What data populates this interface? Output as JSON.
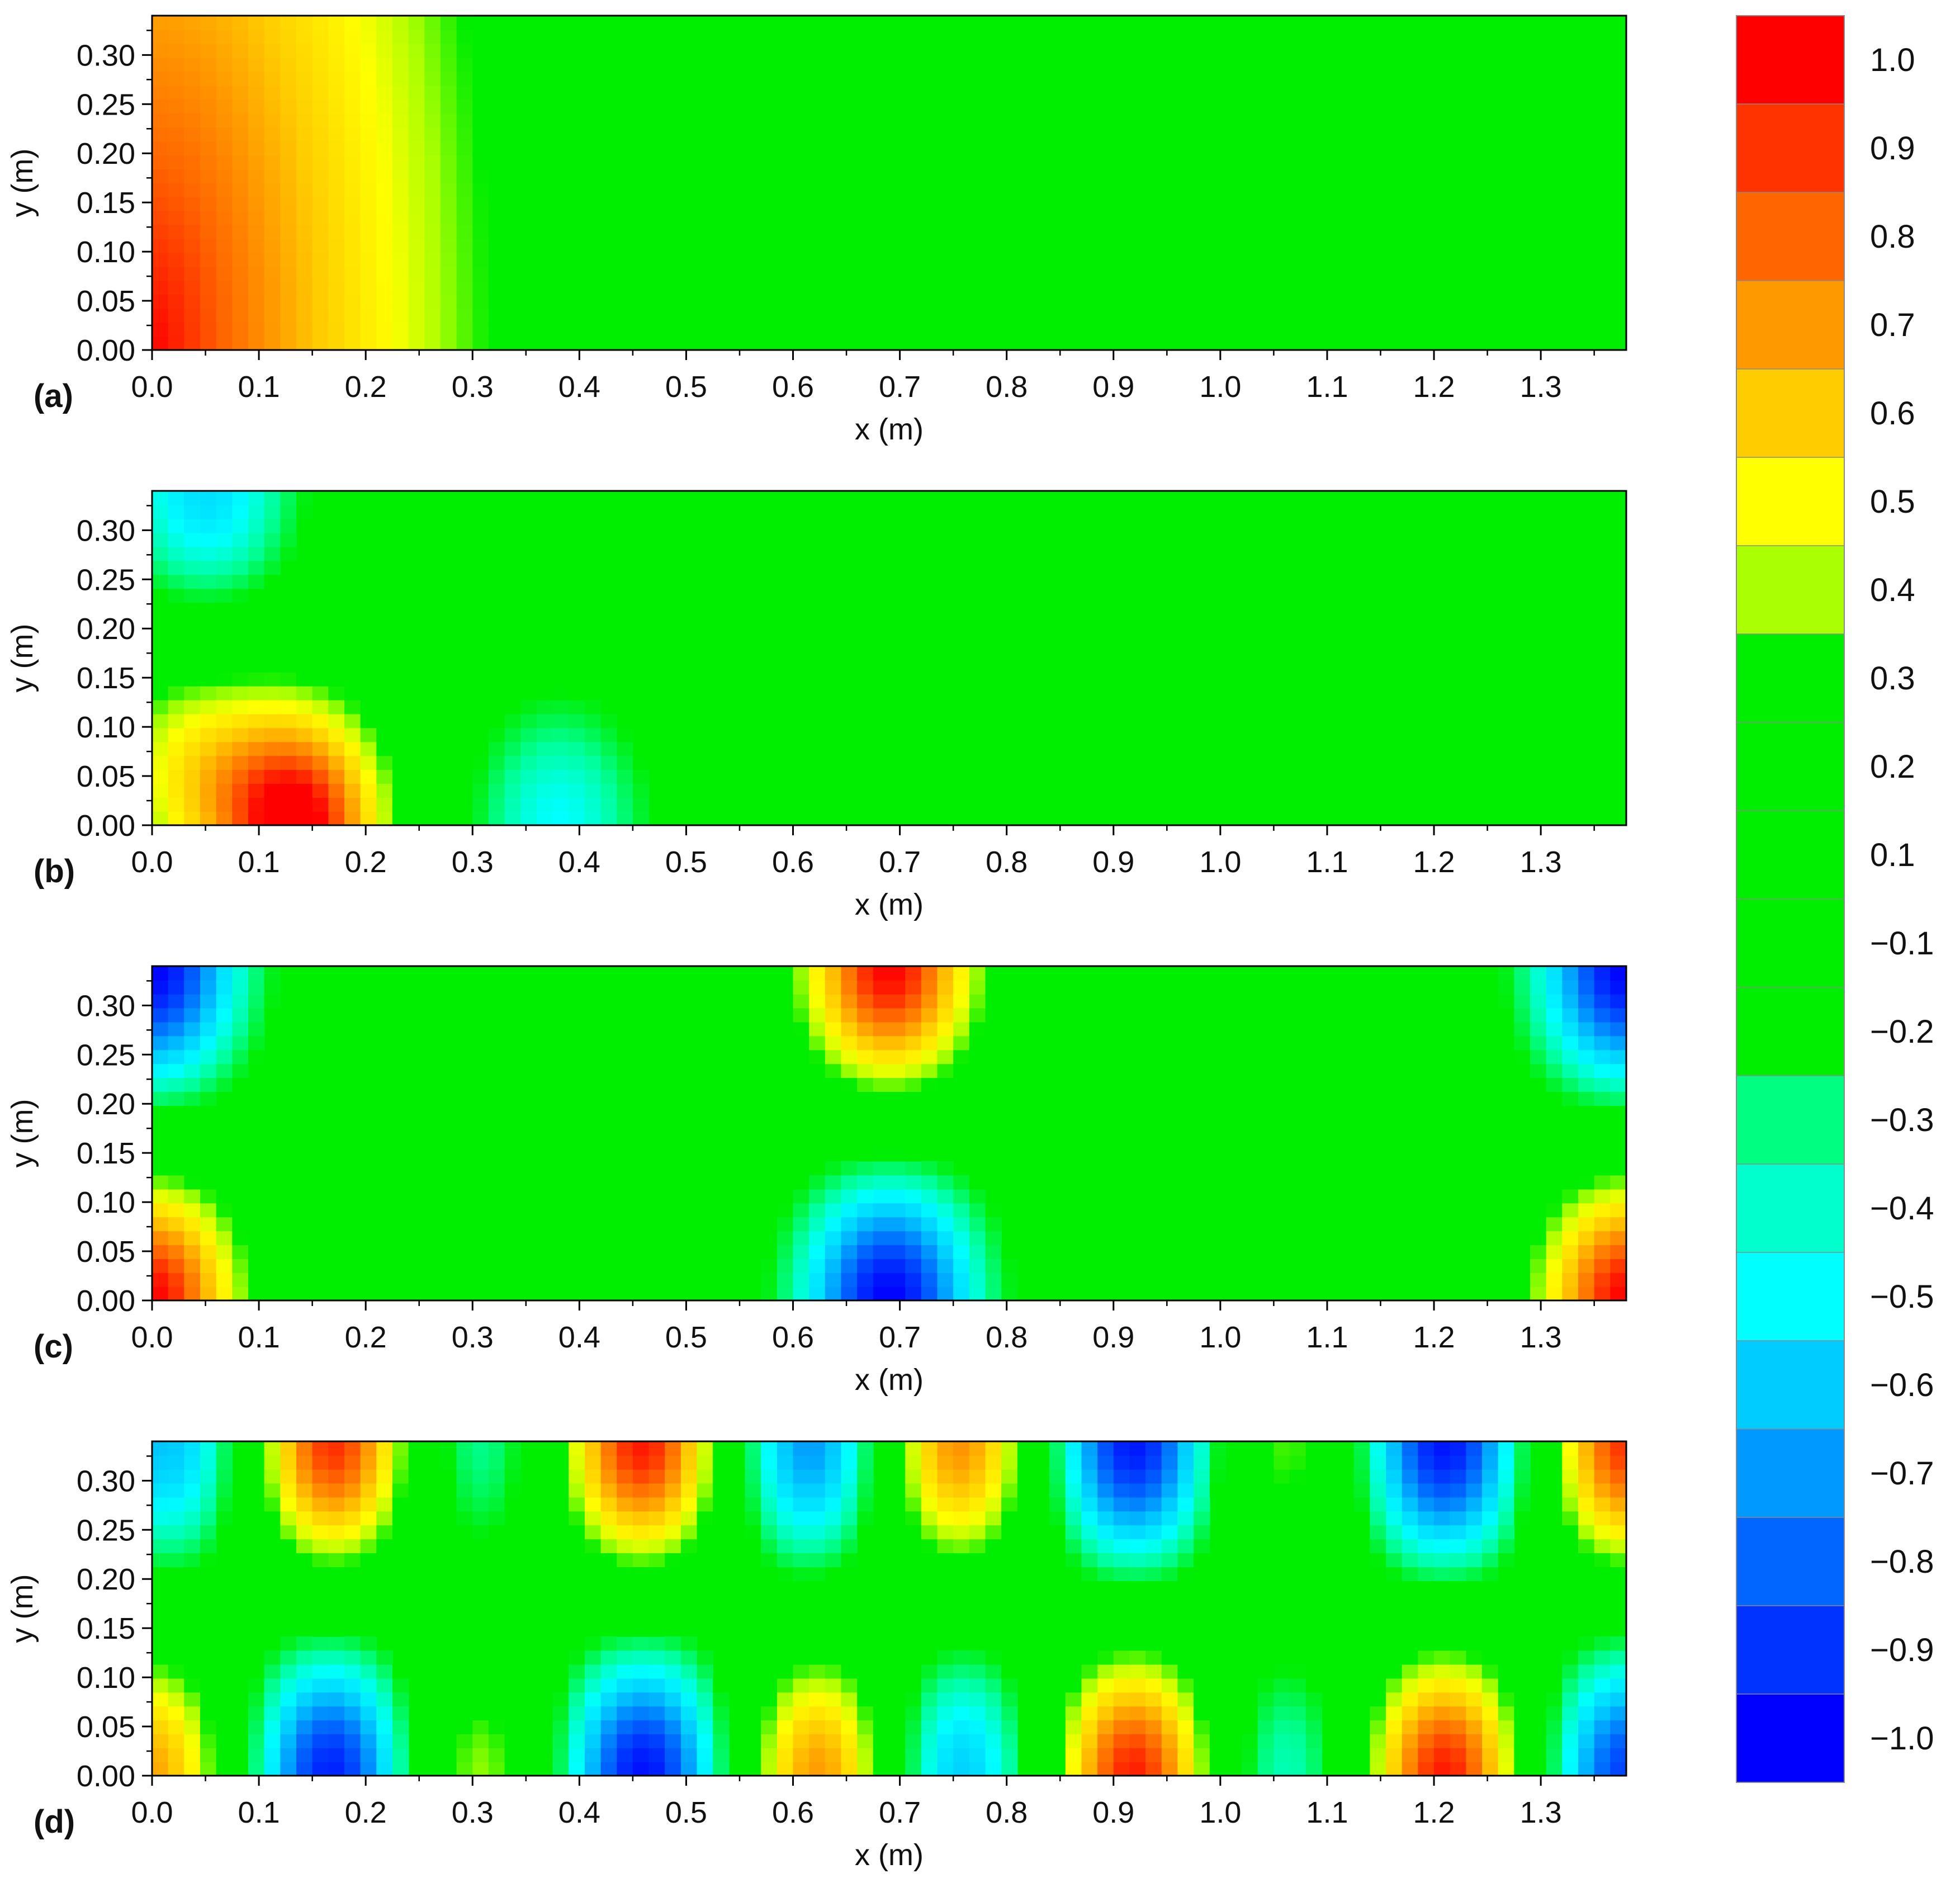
{
  "chart_data": {
    "type": "heatmap",
    "colorbar": {
      "labels": [
        "1.0",
        "0.9",
        "0.8",
        "0.7",
        "0.6",
        "0.5",
        "0.4",
        "0.3",
        "0.2",
        "0.1",
        "−0.1",
        "−0.2",
        "−0.3",
        "−0.4",
        "−0.5",
        "−0.6",
        "−0.7",
        "−0.8",
        "−0.9",
        "−1.0"
      ],
      "colors": [
        "#ff0000",
        "#ff3300",
        "#ff6600",
        "#ff9900",
        "#ffcc00",
        "#ffff00",
        "#aaff00",
        "#00ee00",
        "#00ee00",
        "#00ee00",
        "#00ee00",
        "#00ee00",
        "#00ff80",
        "#00ffcc",
        "#00ffff",
        "#00ccff",
        "#0099ff",
        "#0066ff",
        "#0033ff",
        "#0000ff"
      ]
    },
    "panels": [
      {
        "label": "(a)",
        "xlabel": "x (m)",
        "ylabel": "y (m)",
        "xlim": [
          0,
          1.38
        ],
        "ylim": [
          0,
          0.34
        ],
        "xticks": [
          "0.0",
          "0.1",
          "0.2",
          "0.3",
          "0.4",
          "0.5",
          "0.6",
          "0.7",
          "0.8",
          "0.9",
          "1.0",
          "1.1",
          "1.2",
          "1.3"
        ],
        "yticks": [
          "0.00",
          "0.05",
          "0.10",
          "0.15",
          "0.20",
          "0.25",
          "0.30"
        ],
        "field": {
          "kind": "decay",
          "values": [
            1.0,
            0.45
          ]
        }
      },
      {
        "label": "(b)",
        "xlabel": "x (m)",
        "ylabel": "y (m)",
        "xlim": [
          0,
          1.38
        ],
        "ylim": [
          0,
          0.34
        ],
        "xticks": [
          "0.0",
          "0.1",
          "0.2",
          "0.3",
          "0.4",
          "0.5",
          "0.6",
          "0.7",
          "0.8",
          "0.9",
          "1.0",
          "1.1",
          "1.2",
          "1.3"
        ],
        "yticks": [
          "0.00",
          "0.05",
          "0.10",
          "0.15",
          "0.20",
          "0.25",
          "0.30"
        ],
        "field": {
          "kind": "blobs",
          "blobs": [
            {
              "x": 0.14,
              "y": 0.0,
              "amp": 1.0
            },
            {
              "x": 0.03,
              "y": 0.06,
              "amp": 0.45
            },
            {
              "x": 0.05,
              "y": 0.34,
              "amp": -0.55
            },
            {
              "x": 0.38,
              "y": 0.0,
              "amp": -0.45
            }
          ]
        }
      },
      {
        "label": "(c)",
        "xlabel": "x (m)",
        "ylabel": "y (m)",
        "xlim": [
          0,
          1.38
        ],
        "ylim": [
          0,
          0.34
        ],
        "xticks": [
          "0.0",
          "0.1",
          "0.2",
          "0.3",
          "0.4",
          "0.5",
          "0.6",
          "0.7",
          "0.8",
          "0.9",
          "1.0",
          "1.1",
          "1.2",
          "1.3"
        ],
        "yticks": [
          "0.00",
          "0.05",
          "0.10",
          "0.15",
          "0.20",
          "0.25",
          "0.30"
        ],
        "field": {
          "kind": "blobs",
          "blobs": [
            {
              "x": 0.0,
              "y": 0.0,
              "amp": 1.0
            },
            {
              "x": 0.0,
              "y": 0.34,
              "amp": -1.0
            },
            {
              "x": 0.69,
              "y": 0.0,
              "amp": -1.0
            },
            {
              "x": 0.69,
              "y": 0.34,
              "amp": 1.0
            },
            {
              "x": 1.38,
              "y": 0.0,
              "amp": 1.0
            },
            {
              "x": 1.38,
              "y": 0.34,
              "amp": -1.0
            }
          ]
        }
      },
      {
        "label": "(d)",
        "xlabel": "x (m)",
        "ylabel": "y (m)",
        "xlim": [
          0,
          1.38
        ],
        "ylim": [
          0,
          0.34
        ],
        "xticks": [
          "0.0",
          "0.1",
          "0.2",
          "0.3",
          "0.4",
          "0.5",
          "0.6",
          "0.7",
          "0.8",
          "0.9",
          "1.0",
          "1.1",
          "1.2",
          "1.3"
        ],
        "yticks": [
          "0.00",
          "0.05",
          "0.10",
          "0.15",
          "0.20",
          "0.25",
          "0.30"
        ],
        "field": {
          "kind": "blobs",
          "blobs": [
            {
              "x": 0.0,
              "y": 0.0,
              "amp": 0.75
            },
            {
              "x": 0.17,
              "y": 0.0,
              "amp": -1.0
            },
            {
              "x": 0.3,
              "y": 0.0,
              "amp": 0.5
            },
            {
              "x": 0.46,
              "y": 0.0,
              "amp": -1.0
            },
            {
              "x": 0.63,
              "y": 0.0,
              "amp": 0.85
            },
            {
              "x": 0.75,
              "y": 0.0,
              "amp": -0.7
            },
            {
              "x": 0.92,
              "y": 0.0,
              "amp": 1.0
            },
            {
              "x": 1.06,
              "y": 0.0,
              "amp": -0.45
            },
            {
              "x": 1.21,
              "y": 0.0,
              "amp": 1.0
            },
            {
              "x": 1.38,
              "y": 0.0,
              "amp": -0.9
            },
            {
              "x": 0.02,
              "y": 0.34,
              "amp": -0.65
            },
            {
              "x": 0.17,
              "y": 0.34,
              "amp": 1.0
            },
            {
              "x": 0.3,
              "y": 0.34,
              "amp": -0.4
            },
            {
              "x": 0.46,
              "y": 0.34,
              "amp": 1.0
            },
            {
              "x": 0.62,
              "y": 0.34,
              "amp": -0.8
            },
            {
              "x": 0.75,
              "y": 0.34,
              "amp": 0.85
            },
            {
              "x": 0.92,
              "y": 0.34,
              "amp": -1.0
            },
            {
              "x": 1.06,
              "y": 0.34,
              "amp": 0.45
            },
            {
              "x": 1.21,
              "y": 0.34,
              "amp": -1.0
            },
            {
              "x": 1.38,
              "y": 0.34,
              "amp": 0.95
            }
          ]
        }
      }
    ]
  }
}
